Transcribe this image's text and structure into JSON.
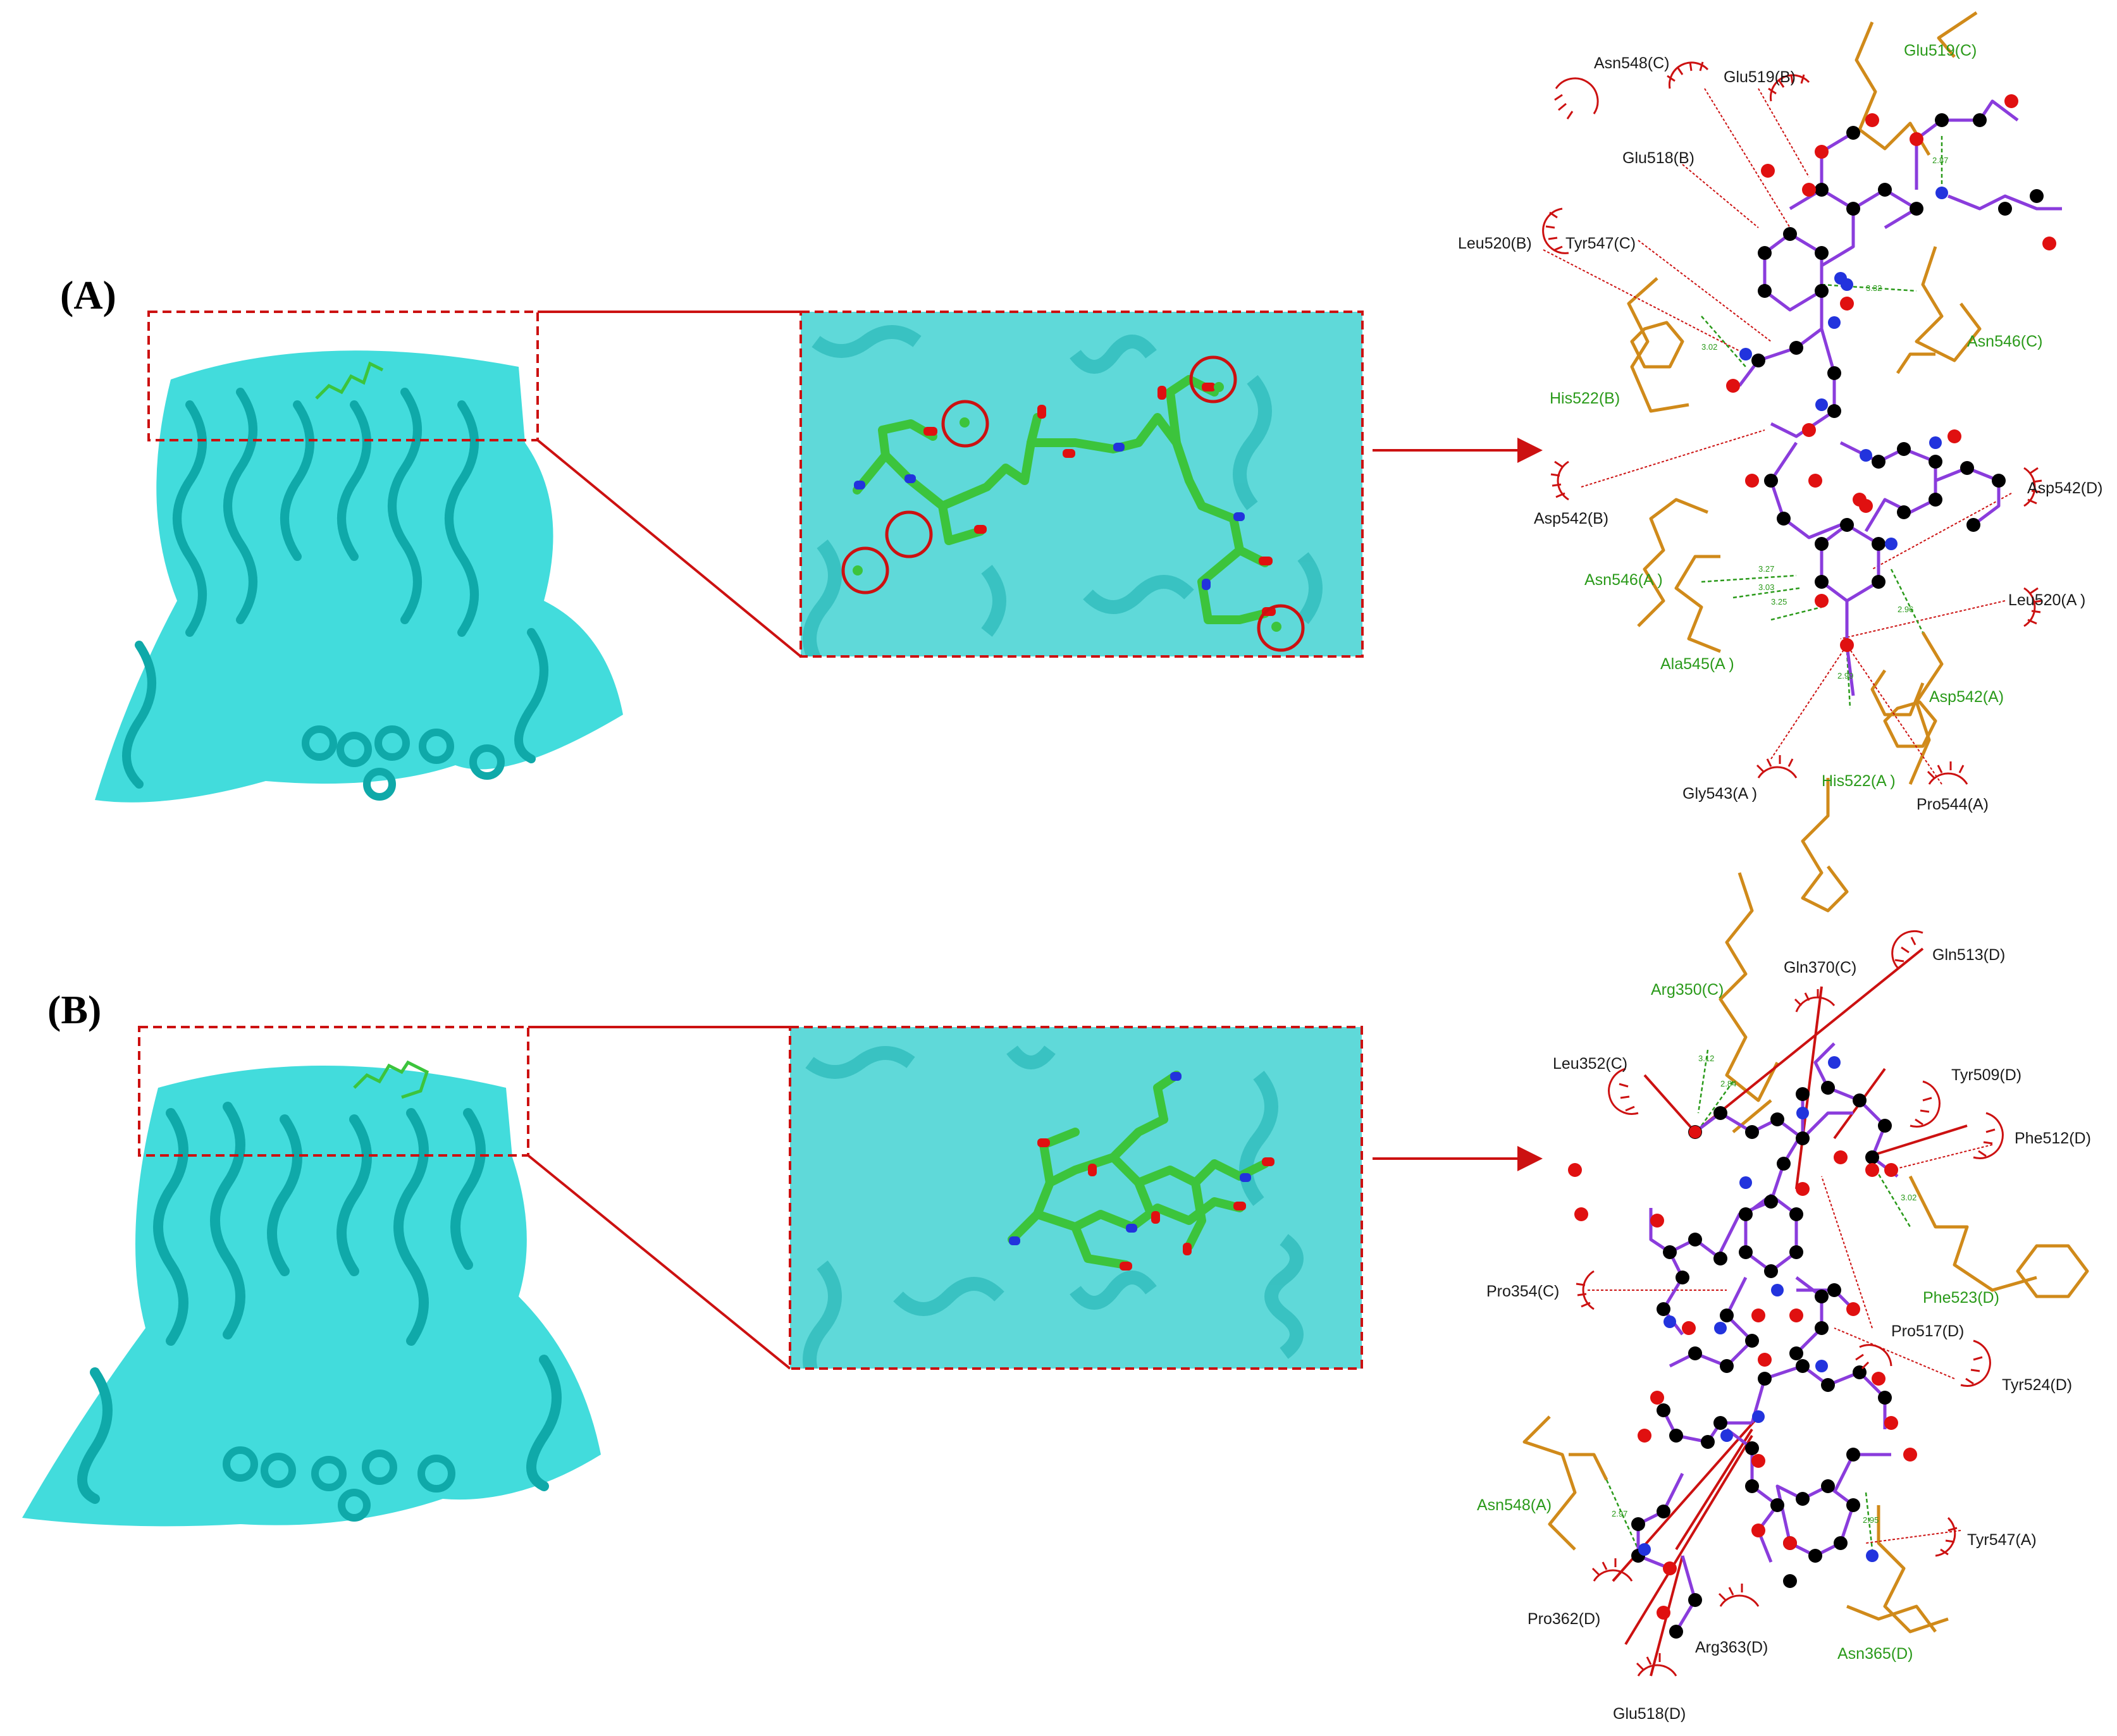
{
  "panels": [
    {
      "label": "(A)",
      "residues_black": [
        "Asn548(C)",
        "Glu519(B)",
        "Glu518(B)",
        "Leu520(B)",
        "Tyr547(C)",
        "Asp542(B)",
        "Asp542(D)",
        "Leu520(A )",
        "Gly543(A )",
        "Pro544(A)"
      ],
      "residues_green": [
        "Glu519(C)",
        "Asn546(C)",
        "His522(B)",
        "Asn546(A )",
        "Ala545(A )",
        "Asp542(A)",
        "His522(A )"
      ],
      "distances": [
        "2.87",
        "3.32",
        "3.02",
        "3.27",
        "3.03",
        "3.25",
        "2.96",
        "2.99"
      ]
    },
    {
      "label": "(B)",
      "residues_black": [
        "Gln370(C)",
        "Gln513(D)",
        "Leu352(C)",
        "Tyr509(D)",
        "Phe512(D)",
        "Pro354(C)",
        "Pro517(D)",
        "Tyr524(D)",
        "Tyr547(A)",
        "Pro362(D)",
        "Arg363(D)",
        "Glu518(D)"
      ],
      "residues_green": [
        "Arg350(C)",
        "Phe523(D)",
        "Asn548(A)",
        "Asn365(D)"
      ],
      "distances": [
        "3.12",
        "2.84",
        "3.02",
        "2.97",
        "2.95"
      ]
    }
  ],
  "colors": {
    "protein": "#21d6d6",
    "protein_dark": "#0fa9a9",
    "ligand_carbon": "#3cc43c",
    "nitrogen": "#2233dd",
    "oxygen": "#e01010",
    "highlight": "#cc1111",
    "bond": "#8a3cdc",
    "sidechain": "#d08a1a",
    "hbond": "#2a9a1a",
    "contact": "#cc1111"
  }
}
